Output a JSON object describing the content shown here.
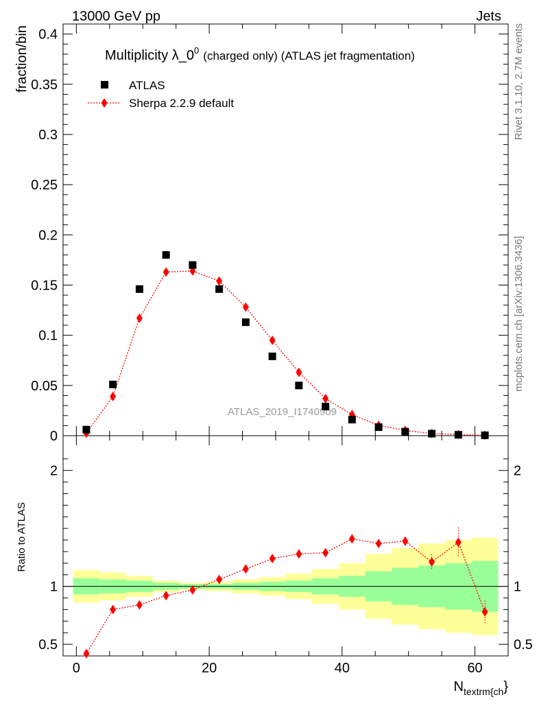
{
  "header": {
    "left": "13000 GeV pp",
    "right": "Jets"
  },
  "side_labels": {
    "rivet": "Rivet 3.1.10,  2.7M events",
    "mcplots": "mcplots.cern.ch [arXiv:1306.3436]"
  },
  "title": {
    "main": "Multiplicity λ_0",
    "superscript": "0",
    "suffix": "(charged only) (ATLAS jet fragmentation)"
  },
  "watermark": "ATLAS_2019_I1740909",
  "legend": {
    "data_label": "ATLAS",
    "mc_label": "Sherpa 2.2.9 default"
  },
  "colors": {
    "data": "#000000",
    "mc": "#ff0000",
    "band_inner": "#99ff99",
    "band_outer": "#ffff99"
  },
  "chart_data": {
    "type": "scatter",
    "xlabel_main": "N",
    "xlabel_sub": "textrm{ch",
    "xlabel_close": "}",
    "xlim": [
      -2,
      65
    ],
    "x_ticks": [
      0,
      20,
      40,
      60
    ],
    "x_tick_labels": [
      "0",
      "20",
      "40",
      "60"
    ],
    "main_panel": {
      "ylabel": "fraction/bin",
      "ylim": [
        0,
        0.41
      ],
      "y_ticks": [
        0,
        0.05,
        0.1,
        0.15,
        0.2,
        0.25,
        0.3,
        0.35,
        0.4
      ],
      "y_tick_labels": [
        "0",
        "0.05",
        "0.1",
        "0.15",
        "0.2",
        "0.25",
        "0.3",
        "0.35",
        "0.4"
      ]
    },
    "ratio_panel": {
      "ylabel": "Ratio to ATLAS",
      "ylim": [
        0.4,
        2.3
      ],
      "y_ticks": [
        0.5,
        1,
        2
      ],
      "y_tick_labels": [
        "0.5",
        "1",
        "2"
      ]
    },
    "bin_edges": [
      -0.5,
      3.5,
      7.5,
      11.5,
      15.5,
      19.5,
      23.5,
      27.5,
      31.5,
      35.5,
      39.5,
      43.5,
      47.5,
      51.5,
      55.5,
      59.5,
      63.5
    ],
    "x": [
      1.5,
      5.5,
      9.5,
      13.5,
      17.5,
      21.5,
      25.5,
      29.5,
      33.5,
      37.5,
      41.5,
      45.5,
      49.5,
      53.5,
      57.5,
      61.5
    ],
    "series": [
      {
        "name": "ATLAS",
        "values": [
          0.006,
          0.051,
          0.146,
          0.18,
          0.17,
          0.146,
          0.113,
          0.079,
          0.05,
          0.029,
          0.016,
          0.0085,
          0.004,
          0.002,
          0.0009,
          0.0004
        ]
      },
      {
        "name": "Sherpa 2.2.9 default",
        "values": [
          0.0025,
          0.039,
          0.117,
          0.163,
          0.164,
          0.154,
          0.128,
          0.095,
          0.063,
          0.037,
          0.021,
          0.0103,
          0.0052,
          0.0022,
          0.0011,
          0.0003
        ]
      }
    ],
    "ratio": [
      0.42,
      0.8,
      0.84,
      0.92,
      0.97,
      1.06,
      1.15,
      1.24,
      1.28,
      1.29,
      1.41,
      1.37,
      1.39,
      1.21,
      1.38,
      0.78
    ],
    "ratio_err": [
      0.01,
      0.01,
      0.01,
      0.01,
      0.01,
      0.01,
      0.01,
      0.01,
      0.01,
      0.01,
      0.02,
      0.03,
      0.04,
      0.07,
      0.13,
      0.1
    ],
    "band_inner": [
      0.07,
      0.06,
      0.05,
      0.03,
      0.02,
      0.02,
      0.03,
      0.04,
      0.05,
      0.07,
      0.09,
      0.13,
      0.16,
      0.18,
      0.2,
      0.22
    ],
    "band_outer": [
      0.14,
      0.12,
      0.09,
      0.05,
      0.03,
      0.04,
      0.06,
      0.08,
      0.11,
      0.15,
      0.2,
      0.28,
      0.33,
      0.37,
      0.4,
      0.42
    ]
  }
}
